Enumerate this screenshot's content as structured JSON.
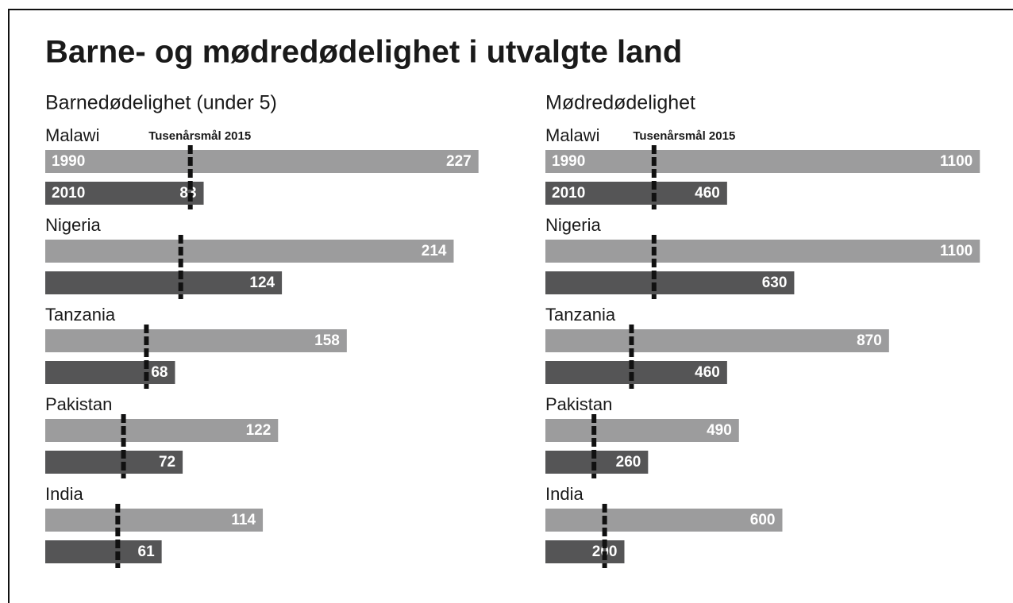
{
  "title": "Barne- og mødredødelighet i utvalgte land",
  "chart_data": [
    {
      "type": "bar",
      "title": "Barnedødelighet (under 5)",
      "categories": [
        "Malawi",
        "Nigeria",
        "Tanzania",
        "Pakistan",
        "India"
      ],
      "series": [
        {
          "name": "1990",
          "color": "#9c9c9d",
          "values": [
            227,
            214,
            158,
            122,
            114
          ]
        },
        {
          "name": "2010",
          "color": "#555556",
          "values": [
            83,
            124,
            68,
            72,
            61
          ]
        }
      ],
      "targets": {
        "label": "Tusenårsmål 2015",
        "values": [
          76,
          71,
          53,
          41,
          38
        ]
      },
      "xlim": [
        0,
        250
      ]
    },
    {
      "type": "bar",
      "title": "Mødredødelighet",
      "categories": [
        "Malawi",
        "Nigeria",
        "Tanzania",
        "Pakistan",
        "India"
      ],
      "series": [
        {
          "name": "1990",
          "color": "#9c9c9d",
          "values": [
            1100,
            1100,
            870,
            490,
            600
          ]
        },
        {
          "name": "2010",
          "color": "#555556",
          "values": [
            460,
            630,
            460,
            260,
            200
          ]
        }
      ],
      "targets": {
        "label": "Tusenårsmål 2015",
        "values": [
          275,
          275,
          218,
          123,
          150
        ]
      },
      "xlim": [
        0,
        1200
      ]
    }
  ]
}
